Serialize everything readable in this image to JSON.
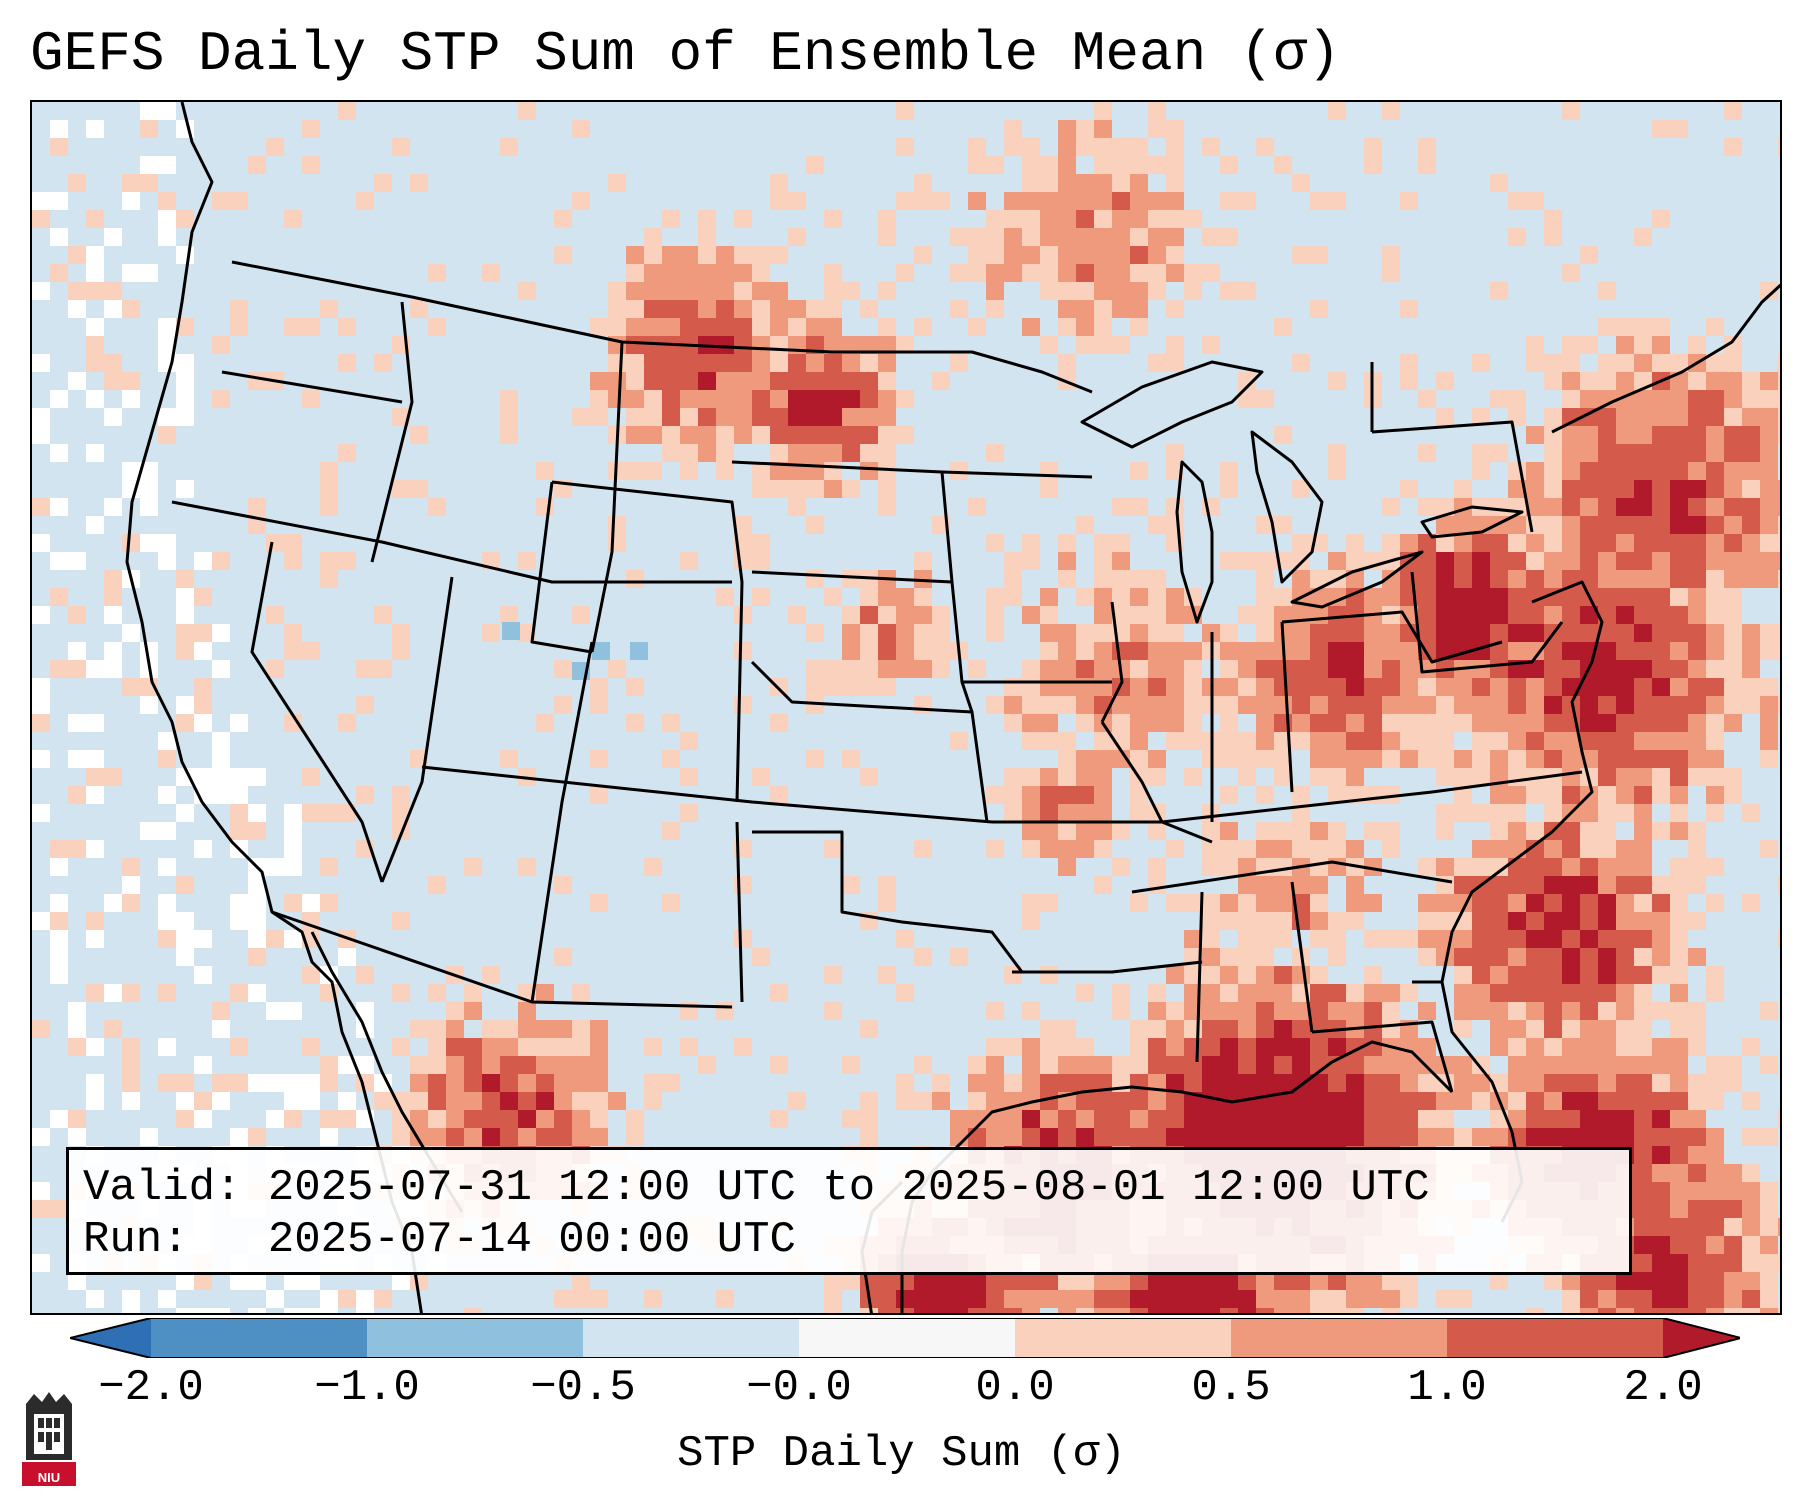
{
  "title": "GEFS Daily STP Sum of Ensemble Mean (σ)",
  "info": {
    "valid_line": "Valid: 2025-07-31 12:00 UTC to 2025-08-01 12:00 UTC",
    "run_line": "Run:   2025-07-14 00:00 UTC"
  },
  "colorbar": {
    "label": "STP Daily Sum (σ)",
    "ticks": [
      "−2.0",
      "−1.0",
      "−0.5",
      "−0.0",
      "0.0",
      "0.5",
      "1.0",
      "2.0"
    ],
    "bins": [
      {
        "color": "#2f6fb3"
      },
      {
        "color": "#4e8fc4"
      },
      {
        "color": "#8fc1de"
      },
      {
        "color": "#d2e4ef"
      },
      {
        "color": "#f7f7f7"
      },
      {
        "color": "#fad1bd"
      },
      {
        "color": "#ef9a7c"
      },
      {
        "color": "#d45a4b"
      },
      {
        "color": "#b11a2b"
      }
    ],
    "under_color": "#2f6fb3",
    "over_color": "#b11a2b"
  },
  "colors": {
    "background_cell": "#d2e4ef",
    "neutral_cell": "#ffffff",
    "light_positive": "#fad1bd",
    "moderate_positive": "#ef9a7c",
    "strong_positive": "#d45a4b",
    "very_strong_positive": "#b11a2b",
    "light_negative": "#8fc1de"
  },
  "logo": {
    "text": "NIU",
    "color": "#c8102e"
  }
}
